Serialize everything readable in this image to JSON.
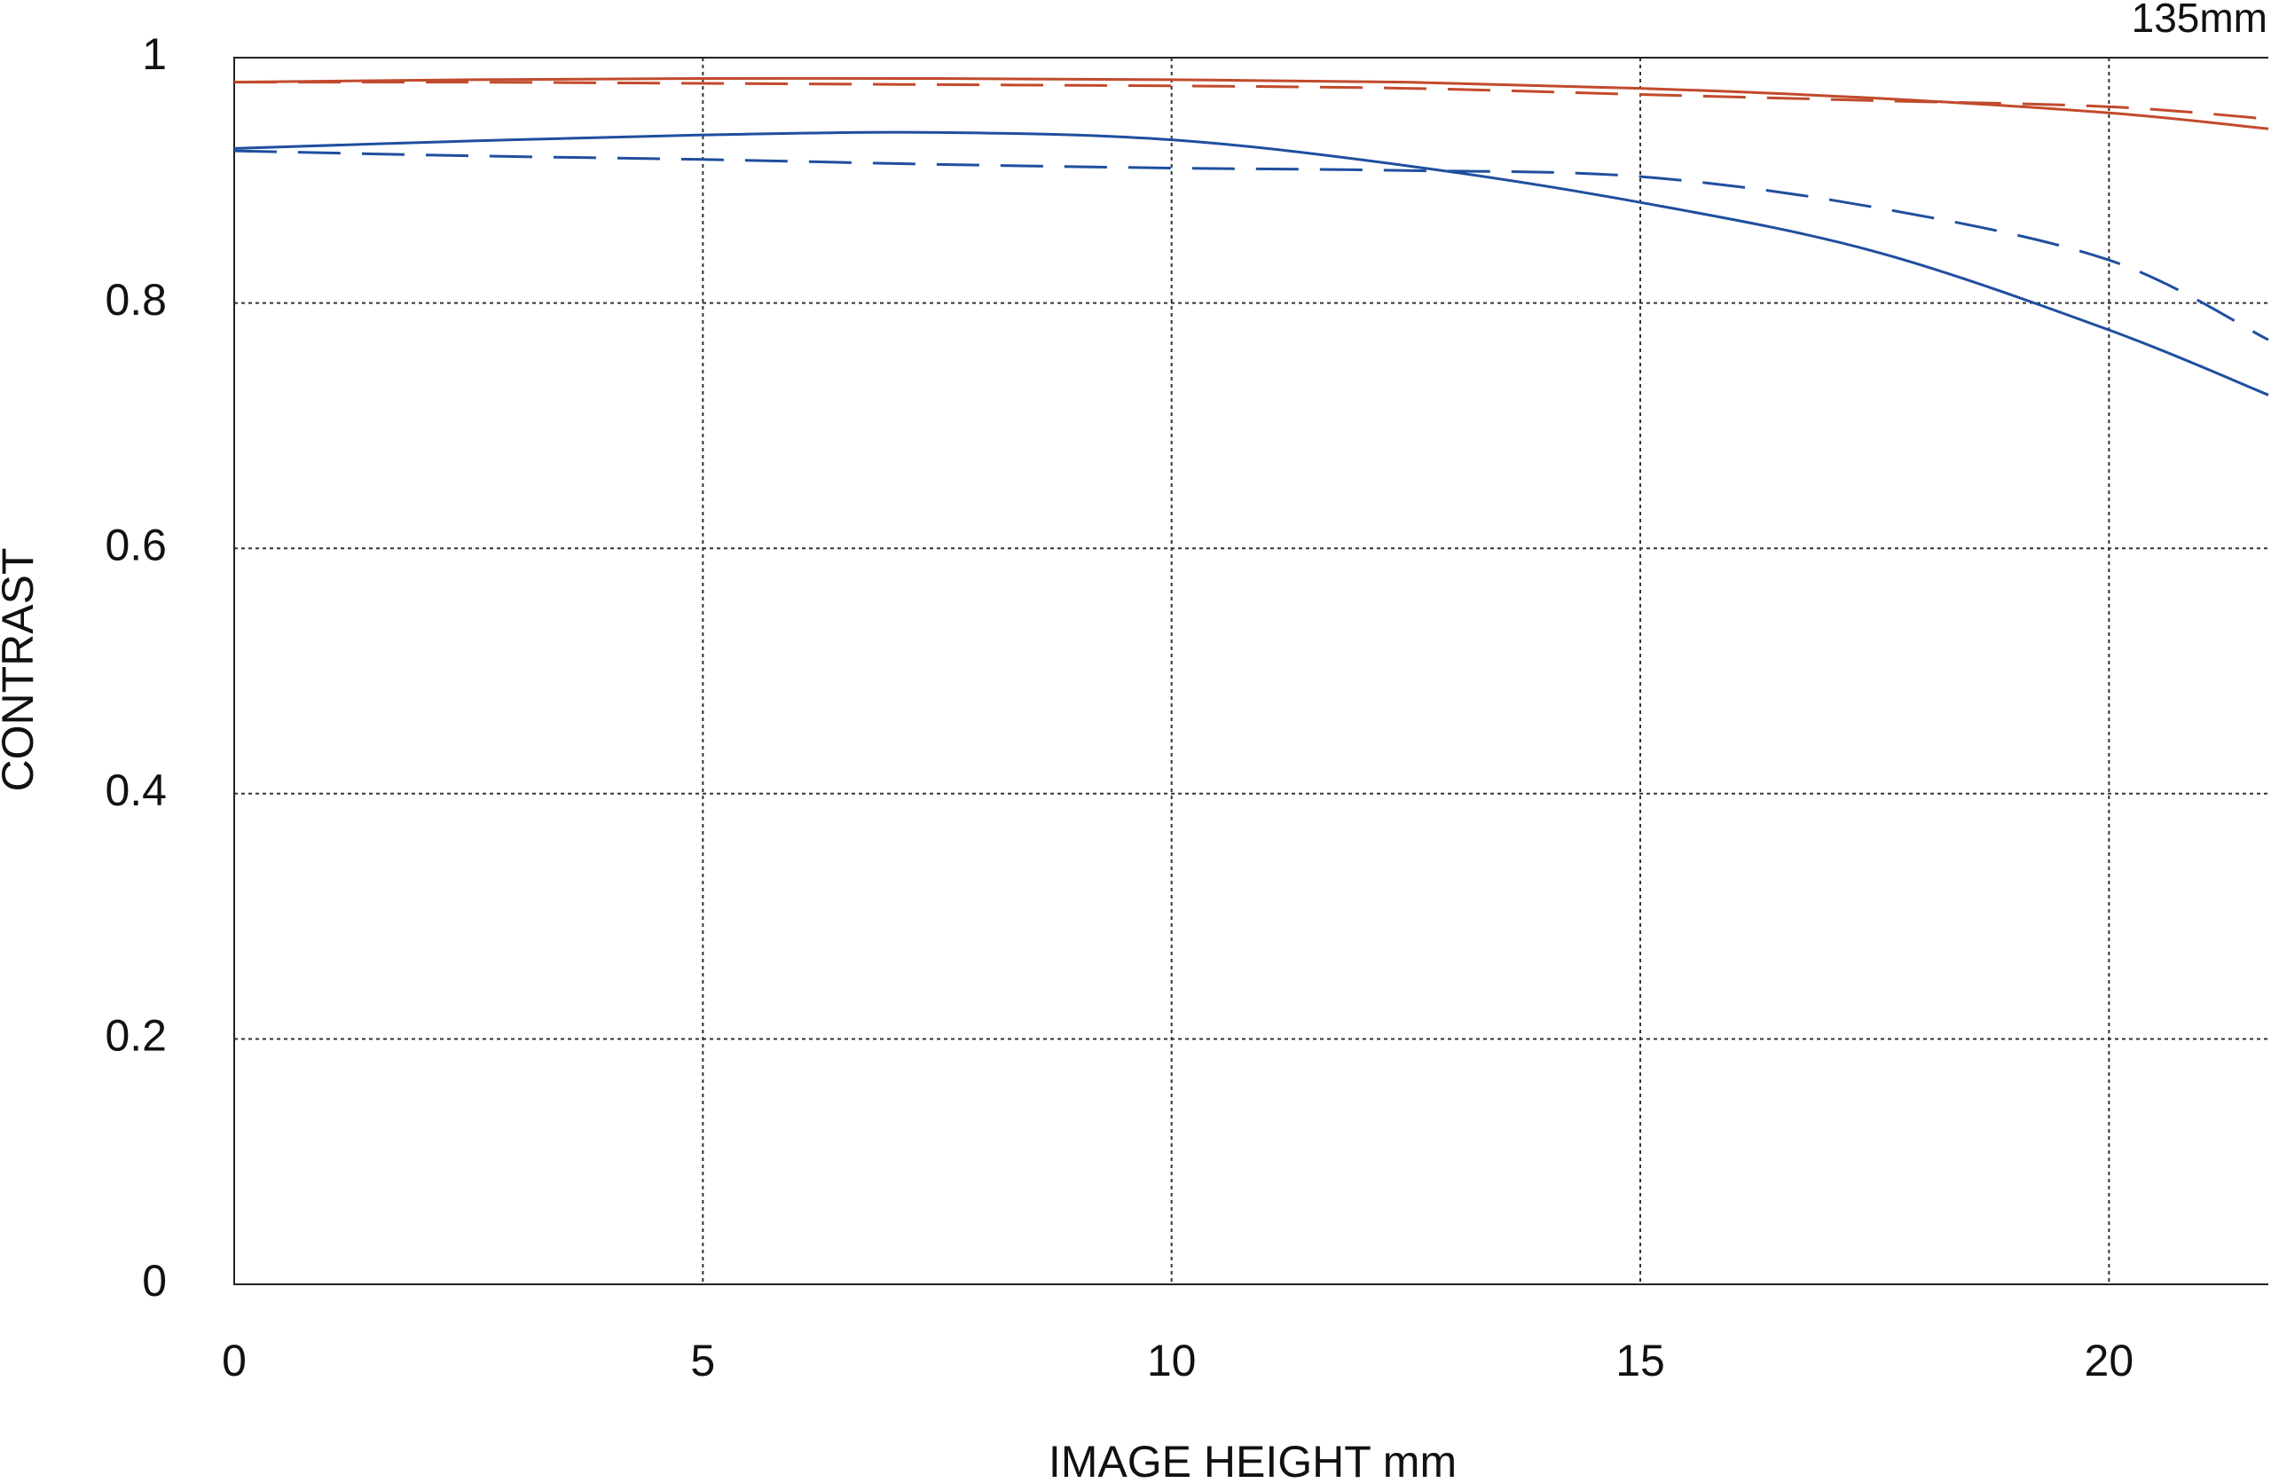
{
  "chart_data": {
    "type": "line",
    "title": "135mm",
    "xlabel": "IMAGE HEIGHT  mm",
    "ylabel": "CONTRAST",
    "x": [
      0,
      2.5,
      5,
      7.5,
      10,
      12.5,
      15,
      17.5,
      20,
      21.7
    ],
    "series": [
      {
        "color": "#c24a2c",
        "style": "solid",
        "values": [
          0.98,
          0.982,
          0.983,
          0.983,
          0.982,
          0.98,
          0.975,
          0.967,
          0.955,
          0.942
        ]
      },
      {
        "color": "#c24a2c",
        "style": "dashed",
        "values": [
          0.98,
          0.98,
          0.979,
          0.978,
          0.977,
          0.975,
          0.97,
          0.965,
          0.96,
          0.95
        ]
      },
      {
        "color": "#1f4f9e",
        "style": "solid",
        "values": [
          0.926,
          0.932,
          0.937,
          0.939,
          0.933,
          0.912,
          0.882,
          0.842,
          0.778,
          0.725
        ]
      },
      {
        "color": "#1f4f9e",
        "style": "dashed",
        "values": [
          0.924,
          0.92,
          0.917,
          0.913,
          0.91,
          0.908,
          0.903,
          0.878,
          0.835,
          0.77
        ]
      }
    ],
    "xlim": [
      0,
      21.7
    ],
    "xticks": [
      0,
      5,
      10,
      15,
      20
    ],
    "ylim": [
      0,
      1
    ],
    "yticks": [
      0,
      0.2,
      0.4,
      0.6,
      0.8,
      1
    ],
    "grid": true
  }
}
